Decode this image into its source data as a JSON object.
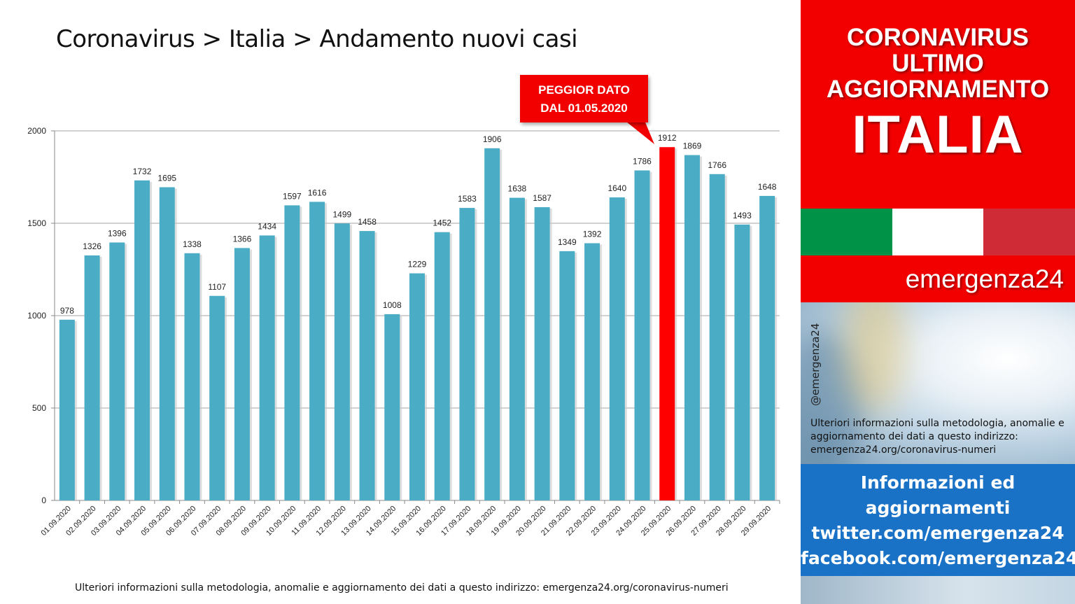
{
  "header": {
    "title": "Coronavirus > Italia > Andamento nuovi casi"
  },
  "callout": {
    "line1": "PEGGIOR DATO",
    "line2": "DAL 01.05.2020"
  },
  "footnote": "Ulteriori informazioni sulla metodologia, anomalie e aggiornamento dei dati a questo indirizzo: emergenza24.org/coronavirus-numeri",
  "sidebar": {
    "heading_lines": [
      "CORONAVIRUS",
      "ULTIMO",
      "AGGIORNAMENTO"
    ],
    "country": "ITALIA",
    "flag_colors": [
      "#009246",
      "#ffffff",
      "#ce2b37"
    ],
    "brand": "emergenza24",
    "handle": "@emergenza24",
    "method_text": "Ulteriori informazioni sulla metodologia, anomalie e aggiornamento dei dati a questo indirizzo: emergenza24.org/coronavirus-numeri",
    "info_lines": [
      "Informazioni ed",
      "aggiornamenti",
      "twitter.com/emergenza24",
      "facebook.com/emergenza24"
    ]
  },
  "colors": {
    "bar": "#4bacc6",
    "highlight": "#ff0000",
    "accent_red": "#f20000",
    "blue_box": "#1a72c6"
  },
  "chart_data": {
    "type": "bar",
    "title": "Coronavirus > Italia > Andamento nuovi casi",
    "xlabel": "",
    "ylabel": "",
    "ylim": [
      0,
      2000
    ],
    "yticks": [
      0,
      500,
      1000,
      1500,
      2000
    ],
    "grid": true,
    "legend": "none",
    "highlight_category": "25.09.2020",
    "categories": [
      "01.09.2020",
      "02.09.2020",
      "03.09.2020",
      "04.09.2020",
      "05.09.2020",
      "06.09.2020",
      "07.09.2020",
      "08.09.2020",
      "09.09.2020",
      "10.09.2020",
      "11.09.2020",
      "12.09.2020",
      "13.09.2020",
      "14.09.2020",
      "15.09.2020",
      "16.09.2020",
      "17.09.2020",
      "18.09.2020",
      "19.09.2020",
      "20.09.2020",
      "21.09.2020",
      "22.09.2020",
      "23.09.2020",
      "24.09.2020",
      "25.09.2020",
      "26.09.2020",
      "27.09.2020",
      "28.09.2020",
      "29.09.2020"
    ],
    "values": [
      978,
      1326,
      1396,
      1732,
      1695,
      1338,
      1107,
      1366,
      1434,
      1597,
      1616,
      1499,
      1458,
      1008,
      1229,
      1452,
      1583,
      1906,
      1638,
      1587,
      1349,
      1392,
      1640,
      1786,
      1912,
      1869,
      1766,
      1493,
      1648
    ]
  }
}
